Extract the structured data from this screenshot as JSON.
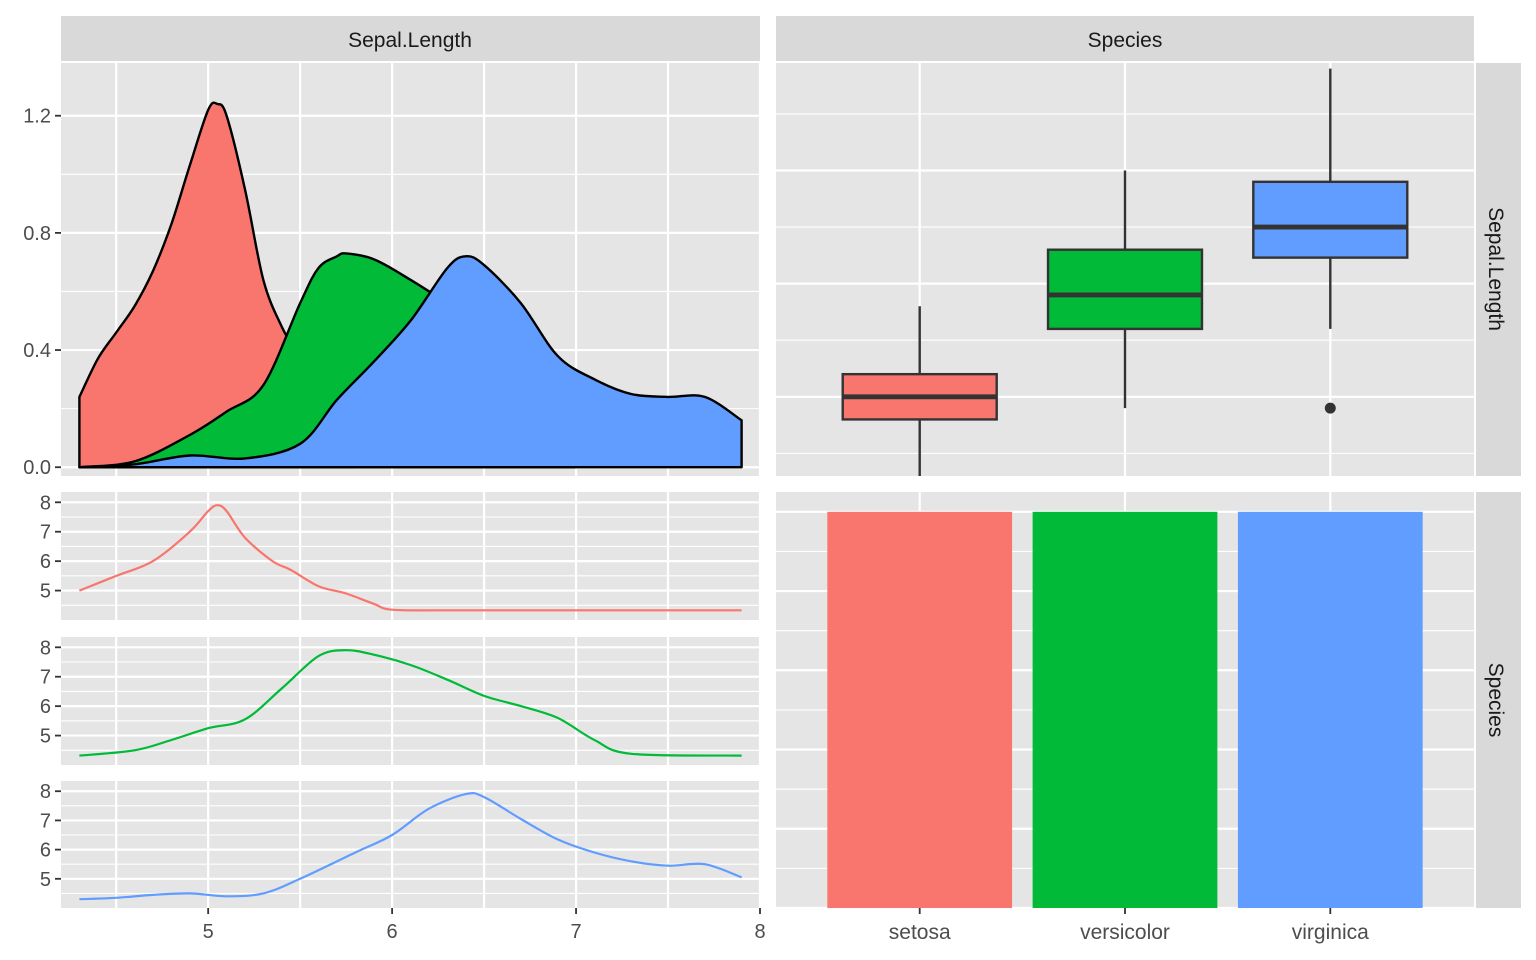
{
  "chart_data": {
    "type": "scatterplot-matrix",
    "variables": [
      "Sepal.Length",
      "Species"
    ],
    "colors": {
      "setosa": "#F8766D",
      "versicolor": "#00BA38",
      "virginica": "#619CFF"
    },
    "panel_bg": "#E5E5E5",
    "strip_bg": "#D9D9D9",
    "grid": true,
    "legend": "none",
    "panels": [
      {
        "id": "sepal-length-density",
        "type": "area",
        "row": "Sepal.Length",
        "col": "Sepal.Length",
        "xlim": [
          4.2,
          8.0
        ],
        "ylim": [
          -0.03,
          1.38
        ],
        "y_ticks": [
          "0.0",
          "0.4",
          "0.8",
          "1.2"
        ],
        "y_tick_values": [
          0,
          0.4,
          0.8,
          1.2
        ],
        "series": [
          {
            "name": "setosa",
            "x": [
              4.3,
              4.4,
              4.5,
              4.6,
              4.7,
              4.8,
              4.9,
              5.0,
              5.05,
              5.1,
              5.2,
              5.3,
              5.4,
              5.5,
              5.6,
              5.7,
              5.8
            ],
            "y": [
              0.24,
              0.37,
              0.46,
              0.55,
              0.67,
              0.83,
              1.03,
              1.22,
              1.24,
              1.2,
              0.95,
              0.64,
              0.48,
              0.37,
              0.26,
              0.19,
              0.15
            ]
          },
          {
            "name": "versicolor",
            "x": [
              4.3,
              4.6,
              4.9,
              5.1,
              5.3,
              5.5,
              5.6,
              5.7,
              5.75,
              5.9,
              6.1,
              6.4,
              6.7,
              6.9,
              7.0
            ],
            "y": [
              0,
              0.02,
              0.11,
              0.19,
              0.28,
              0.56,
              0.68,
              0.72,
              0.73,
              0.71,
              0.64,
              0.52,
              0.4,
              0.28,
              0.25
            ]
          },
          {
            "name": "virginica",
            "x": [
              4.3,
              4.6,
              4.9,
              5.2,
              5.5,
              5.7,
              5.9,
              6.1,
              6.3,
              6.4,
              6.5,
              6.7,
              6.9,
              7.1,
              7.3,
              7.5,
              7.7,
              7.9
            ],
            "y": [
              0,
              0.01,
              0.04,
              0.03,
              0.08,
              0.23,
              0.36,
              0.5,
              0.68,
              0.72,
              0.69,
              0.56,
              0.38,
              0.3,
              0.25,
              0.24,
              0.24,
              0.16
            ]
          }
        ]
      },
      {
        "id": "sepal-length-by-species",
        "type": "boxplot",
        "row": "Sepal.Length",
        "col": "Species",
        "categories": [
          "setosa",
          "versicolor",
          "virginica"
        ],
        "ylim": [
          4.3,
          7.95
        ],
        "boxes": [
          {
            "name": "setosa",
            "min": 4.3,
            "q1": 4.8,
            "median": 5.0,
            "q3": 5.2,
            "max": 5.8,
            "outliers": []
          },
          {
            "name": "versicolor",
            "min": 4.9,
            "q1": 5.6,
            "median": 5.9,
            "q3": 6.3,
            "max": 7.0,
            "outliers": []
          },
          {
            "name": "virginica",
            "min": 5.6,
            "q1": 6.23,
            "median": 6.5,
            "q3": 6.9,
            "max": 7.9,
            "outliers": [
              4.9
            ]
          }
        ]
      },
      {
        "id": "sepal-length-facets",
        "type": "line",
        "row": "Species",
        "col": "Sepal.Length",
        "xlim": [
          4.2,
          8.0
        ],
        "x_ticks": [
          "5",
          "6",
          "7",
          "8"
        ],
        "x_tick_values": [
          5,
          6,
          7,
          8
        ],
        "ylim": [
          4.0,
          8.35
        ],
        "y_ticks": [
          "5",
          "6",
          "7",
          "8"
        ],
        "y_tick_values": [
          5,
          6,
          7,
          8
        ],
        "series": [
          {
            "name": "setosa",
            "x": [
              4.3,
              4.5,
              4.7,
              4.9,
              5.0,
              5.05,
              5.1,
              5.2,
              5.35,
              5.45,
              5.6,
              5.75,
              5.9,
              6.0,
              6.3,
              7.0,
              7.9
            ],
            "y": [
              5.0,
              5.5,
              6.0,
              7.0,
              7.7,
              7.9,
              7.7,
              6.8,
              6.0,
              5.7,
              5.15,
              4.9,
              4.55,
              4.35,
              4.33,
              4.33,
              4.33
            ]
          },
          {
            "name": "versicolor",
            "x": [
              4.3,
              4.6,
              4.8,
              5.0,
              5.2,
              5.4,
              5.6,
              5.75,
              5.9,
              6.1,
              6.3,
              6.5,
              6.7,
              6.9,
              7.1,
              7.3,
              7.9
            ],
            "y": [
              4.32,
              4.5,
              4.85,
              5.25,
              5.55,
              6.6,
              7.7,
              7.9,
              7.75,
              7.4,
              6.9,
              6.35,
              6.0,
              5.6,
              4.85,
              4.38,
              4.32
            ]
          },
          {
            "name": "virginica",
            "x": [
              4.3,
              4.5,
              4.7,
              4.9,
              5.1,
              5.3,
              5.5,
              5.8,
              6.0,
              6.2,
              6.4,
              6.5,
              6.7,
              6.9,
              7.1,
              7.3,
              7.5,
              7.7,
              7.9
            ],
            "y": [
              4.3,
              4.35,
              4.45,
              4.5,
              4.4,
              4.5,
              5.0,
              5.9,
              6.5,
              7.4,
              7.9,
              7.8,
              7.05,
              6.35,
              5.9,
              5.6,
              5.45,
              5.5,
              5.05
            ]
          }
        ]
      },
      {
        "id": "species-counts",
        "type": "bar",
        "row": "Species",
        "col": "Species",
        "categories": [
          "setosa",
          "versicolor",
          "virginica"
        ],
        "values": [
          50,
          50,
          50
        ],
        "ylim": [
          0,
          52.5
        ]
      }
    ]
  }
}
